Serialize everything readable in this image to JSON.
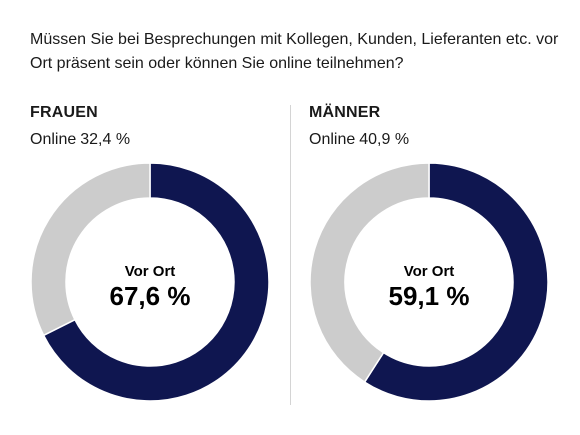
{
  "question": "Müssen Sie bei Besprechungen mit Kollegen, Kunden, Lieferanten etc. vor Ort präsent sein oder können Sie online teilnehmen?",
  "colors": {
    "vor_ort": "#0f1650",
    "online": "#cccccc",
    "separator": "#ffffff",
    "text": "#1a1a1a"
  },
  "chart_data": [
    {
      "type": "pie",
      "title": "FRAUEN",
      "online_label": "Online",
      "online_value": "32,4 %",
      "center_label": "Vor Ort",
      "center_value": "67,6 %",
      "categories": [
        "Vor Ort",
        "Online"
      ],
      "values": [
        67.6,
        32.4
      ]
    },
    {
      "type": "pie",
      "title": "MÄNNER",
      "online_label": "Online",
      "online_value": "40,9 %",
      "center_label": "Vor Ort",
      "center_value": "59,1 %",
      "categories": [
        "Vor Ort",
        "Online"
      ],
      "values": [
        59.1,
        40.9
      ]
    }
  ]
}
